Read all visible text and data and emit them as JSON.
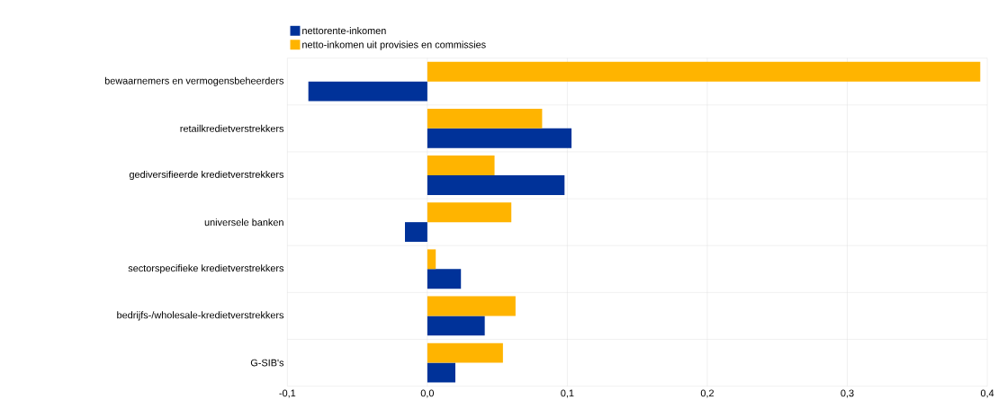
{
  "chart_data": {
    "type": "bar",
    "orientation": "horizontal",
    "categories": [
      "bewaarnemers en vermogensbeheerders",
      "retailkredietverstrekkers",
      "gediversifieerde kredietverstrekkers",
      "universele banken",
      "sectorspecifieke kredietverstrekkers",
      "bedrijfs-/wholesale-kredietverstrekkers",
      "G-SIB's"
    ],
    "series": [
      {
        "name": "nettorente-inkomen",
        "color": "#003299",
        "values": [
          -0.085,
          0.103,
          0.098,
          -0.016,
          0.024,
          0.041,
          0.02
        ]
      },
      {
        "name": "netto-inkomen uit provisies en commissies",
        "color": "#ffb400",
        "values": [
          0.395,
          0.082,
          0.048,
          0.06,
          0.006,
          0.063,
          0.054
        ]
      }
    ],
    "xlim": [
      -0.1,
      0.4
    ],
    "xticks": [
      {
        "value": -0.1,
        "label": "-0,1"
      },
      {
        "value": 0.0,
        "label": "0,0"
      },
      {
        "value": 0.1,
        "label": "0,1"
      },
      {
        "value": 0.2,
        "label": "0,2"
      },
      {
        "value": 0.3,
        "label": "0,3"
      },
      {
        "value": 0.4,
        "label": "0,4"
      }
    ],
    "grid": true,
    "legend": "top left"
  }
}
